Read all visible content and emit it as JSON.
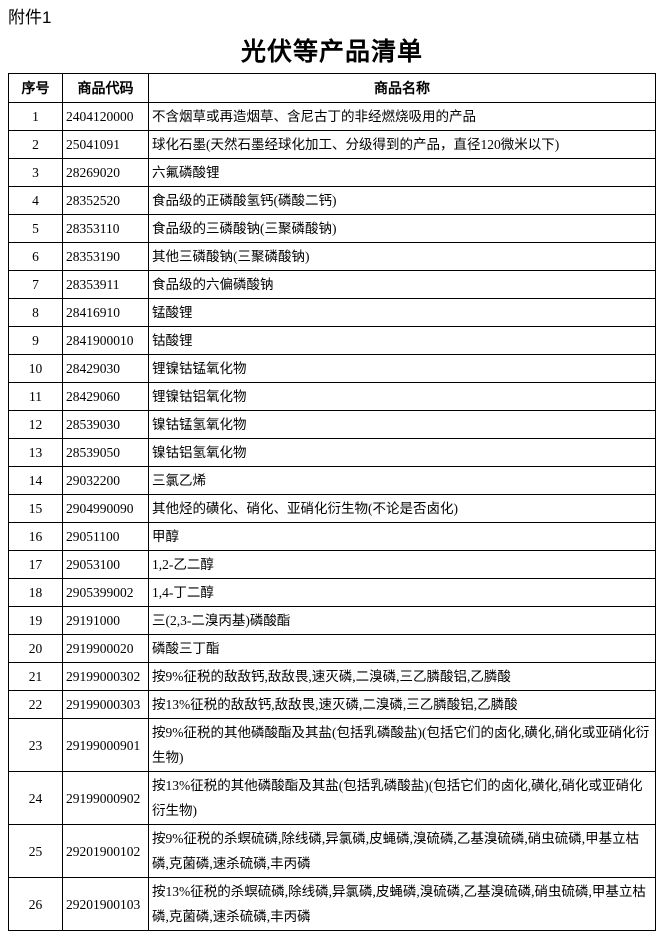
{
  "header": {
    "label": "附件1",
    "title": "光伏等产品清单"
  },
  "table": {
    "columns": [
      "序号",
      "商品代码",
      "商品名称"
    ],
    "rows": [
      [
        "1",
        "2404120000",
        "不含烟草或再造烟草、含尼古丁的非经燃烧吸用的产品"
      ],
      [
        "2",
        "25041091",
        "球化石墨(天然石墨经球化加工、分级得到的产品，直径120微米以下)"
      ],
      [
        "3",
        "28269020",
        "六氟磷酸锂"
      ],
      [
        "4",
        "28352520",
        "食品级的正磷酸氢钙(磷酸二钙)"
      ],
      [
        "5",
        "28353110",
        "食品级的三磷酸钠(三聚磷酸钠)"
      ],
      [
        "6",
        "28353190",
        "其他三磷酸钠(三聚磷酸钠)"
      ],
      [
        "7",
        "28353911",
        "食品级的六偏磷酸钠"
      ],
      [
        "8",
        "28416910",
        "锰酸锂"
      ],
      [
        "9",
        "2841900010",
        "钴酸锂"
      ],
      [
        "10",
        "28429030",
        "锂镍钴锰氧化物"
      ],
      [
        "11",
        "28429060",
        "锂镍钴铝氧化物"
      ],
      [
        "12",
        "28539030",
        "镍钴锰氢氧化物"
      ],
      [
        "13",
        "28539050",
        "镍钴铝氢氧化物"
      ],
      [
        "14",
        "29032200",
        "三氯乙烯"
      ],
      [
        "15",
        "2904990090",
        "其他烃的磺化、硝化、亚硝化衍生物(不论是否卤化)"
      ],
      [
        "16",
        "29051100",
        "甲醇"
      ],
      [
        "17",
        "29053100",
        "1,2-乙二醇"
      ],
      [
        "18",
        "2905399002",
        "1,4-丁二醇"
      ],
      [
        "19",
        "29191000",
        "三(2,3-二溴丙基)磷酸酯"
      ],
      [
        "20",
        "2919900020",
        "磷酸三丁酯"
      ],
      [
        "21",
        "29199000302",
        "按9%征税的敌敌钙,敌敌畏,速灭磷,二溴磷,三乙膦酸铝,乙膦酸"
      ],
      [
        "22",
        "29199000303",
        "按13%征税的敌敌钙,敌敌畏,速灭磷,二溴磷,三乙膦酸铝,乙膦酸"
      ],
      [
        "23",
        "29199000901",
        "按9%征税的其他磷酸酯及其盐(包括乳磷酸盐)(包括它们的卤化,磺化,硝化或亚硝化衍生物)"
      ],
      [
        "24",
        "29199000902",
        "按13%征税的其他磷酸酯及其盐(包括乳磷酸盐)(包括它们的卤化,磺化,硝化或亚硝化衍生物)"
      ],
      [
        "25",
        "29201900102",
        "按9%征税的杀螟硫磷,除线磷,异氯磷,皮蝇磷,溴硫磷,乙基溴硫磷,硝虫硫磷,甲基立枯磷,克菌磷,速杀硫磷,丰丙磷"
      ],
      [
        "26",
        "29201900103",
        "按13%征税的杀螟硫磷,除线磷,异氯磷,皮蝇磷,溴硫磷,乙基溴硫磷,硝虫硫磷,甲基立枯磷,克菌磷,速杀硫磷,丰丙磷"
      ]
    ]
  }
}
